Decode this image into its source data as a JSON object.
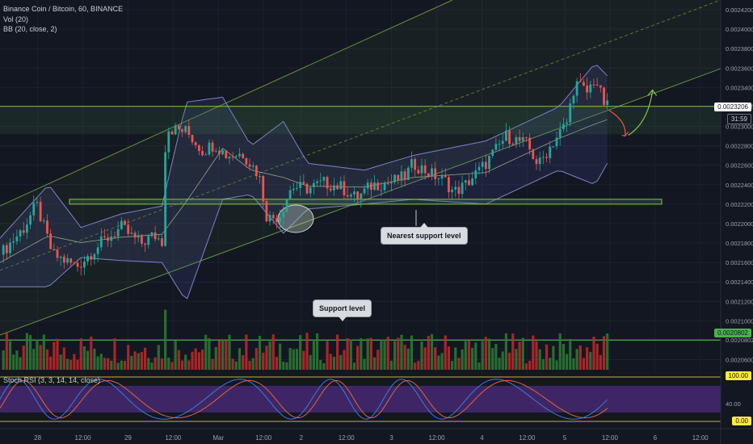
{
  "header": {
    "symbol_line": "Binance Coin / Bitcoin, 60, BINANCE",
    "vol_label": "Vol (20)",
    "bb_label": "BB (20, close, 2)",
    "stoch_label": "Stoch RSI (3, 3, 14, 14, close)"
  },
  "annotations": {
    "nearest_support": "Nearest support level",
    "support_level": "Support level"
  },
  "price_tags": {
    "current": "0.0023206",
    "countdown": "31:59",
    "volume_level": "0.0020802",
    "rsi_top": "100.00",
    "rsi_bottom": "0.00"
  },
  "colors": {
    "background": "#131722",
    "bull": "#26a69a",
    "bull_volume": "#2e7d32",
    "bear": "#ef5350",
    "bear_volume": "#c62828",
    "bb_band": "#7c83c8",
    "channel": "#8bc34a",
    "stoch_k": "#3d7bd9",
    "stoch_d": "#e0643b",
    "rsi_fill": "#4a2a78"
  },
  "chart_data": {
    "type": "candlestick",
    "symbol": "Binance Coin / Bitcoin",
    "interval": "60",
    "exchange": "BINANCE",
    "price_axis": [
      "0.0024200",
      "0.0024000",
      "0.0023800",
      "0.0023600",
      "0.0023400",
      "0.0023206",
      "0.0023000",
      "0.0022800",
      "0.0022600",
      "0.0022400",
      "0.0022200",
      "0.0022000",
      "0.0021800",
      "0.0021600",
      "0.0021400",
      "0.0021200",
      "0.0021000",
      "0.0020802",
      "0.0020600"
    ],
    "time_axis": [
      "28",
      "12:00",
      "29",
      "12:00",
      "Mar",
      "12:00",
      "2",
      "12:00",
      "3",
      "12:00",
      "4",
      "12:00",
      "5",
      "12:00",
      "6",
      "12:00"
    ],
    "price_path": [
      {
        "t": 0,
        "p": 0.002168
      },
      {
        "t": 0.06,
        "p": 0.002196
      },
      {
        "t": 0.09,
        "p": 0.00222
      },
      {
        "t": 0.13,
        "p": 0.002168
      },
      {
        "t": 0.19,
        "p": 0.002156
      },
      {
        "t": 0.25,
        "p": 0.00218
      },
      {
        "t": 0.3,
        "p": 0.002196
      },
      {
        "t": 0.33,
        "p": 0.002185
      },
      {
        "t": 0.35,
        "p": 0.00218
      },
      {
        "t": 0.38,
        "p": 0.002188
      },
      {
        "t": 0.4,
        "p": 0.002182
      },
      {
        "t": 0.41,
        "p": 0.002298
      },
      {
        "t": 0.46,
        "p": 0.002295
      },
      {
        "t": 0.5,
        "p": 0.002275
      },
      {
        "t": 0.53,
        "p": 0.002282
      },
      {
        "t": 0.56,
        "p": 0.00227
      },
      {
        "t": 0.6,
        "p": 0.002272
      },
      {
        "t": 0.64,
        "p": 0.00225
      },
      {
        "t": 0.66,
        "p": 0.002205
      },
      {
        "t": 0.69,
        "p": 0.002208
      },
      {
        "t": 0.72,
        "p": 0.002238
      },
      {
        "t": 0.76,
        "p": 0.002236
      },
      {
        "t": 0.8,
        "p": 0.002242
      },
      {
        "t": 0.84,
        "p": 0.002238
      },
      {
        "t": 0.88,
        "p": 0.002226
      },
      {
        "t": 0.92,
        "p": 0.00224
      },
      {
        "t": 0.96,
        "p": 0.002242
      },
      {
        "t": 1.0,
        "p": 0.002248
      },
      {
        "t": 1.02,
        "p": 0.002262
      },
      {
        "t": 1.06,
        "p": 0.002252
      },
      {
        "t": 1.1,
        "p": 0.002244
      },
      {
        "t": 1.12,
        "p": 0.002232
      },
      {
        "t": 1.15,
        "p": 0.00224
      },
      {
        "t": 1.2,
        "p": 0.002262
      },
      {
        "t": 1.25,
        "p": 0.00229
      },
      {
        "t": 1.3,
        "p": 0.002282
      },
      {
        "t": 1.33,
        "p": 0.00226
      },
      {
        "t": 1.36,
        "p": 0.00228
      },
      {
        "t": 1.4,
        "p": 0.002304
      },
      {
        "t": 1.42,
        "p": 0.002345
      },
      {
        "t": 1.45,
        "p": 0.002335
      },
      {
        "t": 1.47,
        "p": 0.00235
      },
      {
        "t": 1.49,
        "p": 0.002325
      },
      {
        "t": 1.5,
        "p": 0.00232
      }
    ],
    "bollinger_bands": {
      "upper": [
        {
          "t": 0,
          "p": 0.002185
        },
        {
          "t": 0.12,
          "p": 0.00224
        },
        {
          "t": 0.2,
          "p": 0.002196
        },
        {
          "t": 0.3,
          "p": 0.00221
        },
        {
          "t": 0.4,
          "p": 0.002218
        },
        {
          "t": 0.46,
          "p": 0.002325
        },
        {
          "t": 0.55,
          "p": 0.00233
        },
        {
          "t": 0.62,
          "p": 0.00228
        },
        {
          "t": 0.7,
          "p": 0.002305
        },
        {
          "t": 0.76,
          "p": 0.002262
        },
        {
          "t": 0.9,
          "p": 0.002255
        },
        {
          "t": 1.02,
          "p": 0.00227
        },
        {
          "t": 1.2,
          "p": 0.002285
        },
        {
          "t": 1.38,
          "p": 0.00232
        },
        {
          "t": 1.47,
          "p": 0.002365
        },
        {
          "t": 1.5,
          "p": 0.002352
        }
      ],
      "lower": [
        {
          "t": 0,
          "p": 0.002135
        },
        {
          "t": 0.12,
          "p": 0.002135
        },
        {
          "t": 0.2,
          "p": 0.002165
        },
        {
          "t": 0.3,
          "p": 0.002162
        },
        {
          "t": 0.4,
          "p": 0.00216
        },
        {
          "t": 0.46,
          "p": 0.00212
        },
        {
          "t": 0.55,
          "p": 0.002225
        },
        {
          "t": 0.62,
          "p": 0.00223
        },
        {
          "t": 0.7,
          "p": 0.00219
        },
        {
          "t": 0.76,
          "p": 0.002215
        },
        {
          "t": 0.9,
          "p": 0.00222
        },
        {
          "t": 1.02,
          "p": 0.002225
        },
        {
          "t": 1.2,
          "p": 0.00222
        },
        {
          "t": 1.38,
          "p": 0.002255
        },
        {
          "t": 1.47,
          "p": 0.00224
        },
        {
          "t": 1.5,
          "p": 0.002262
        }
      ]
    },
    "horizontal_levels": [
      {
        "label": "resistance",
        "price": 0.0023206
      },
      {
        "label": "support zone top",
        "price": 0.002225
      },
      {
        "label": "support zone bottom",
        "price": 0.00222
      }
    ],
    "volume_level": 0.0020802,
    "stoch_rsi": {
      "upper_band": 80,
      "lower_band": 20,
      "axis": [
        "100.00",
        "40.00",
        "0.00"
      ]
    }
  }
}
